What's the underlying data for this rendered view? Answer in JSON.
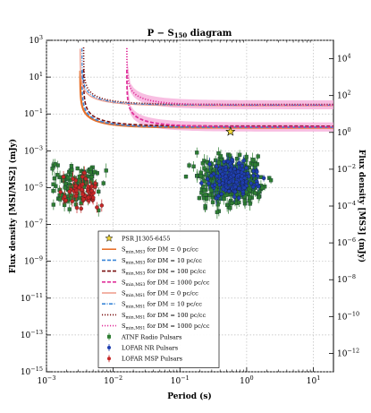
{
  "chart_data": {
    "type": "scatter",
    "title_main": "P − S",
    "title_sub": "150",
    "title_tail": " diagram",
    "xlabel": "Period (s)",
    "ylabel_left": "Flux density [MSI/MS2] (mJy)",
    "ylabel_right": "Flux density [MS3] (mJy)",
    "x_scale": "log",
    "y_scale": "log",
    "xlim": [
      0.001,
      20
    ],
    "ylim_left": [
      1e-15,
      1000
    ],
    "ylim_right": [
      1e-13,
      100000
    ],
    "x_ticks": [
      {
        "v": 0.001,
        "base": "10",
        "exp": "−3"
      },
      {
        "v": 0.01,
        "base": "10",
        "exp": "−2"
      },
      {
        "v": 0.1,
        "base": "10",
        "exp": "−1"
      },
      {
        "v": 1,
        "base": "10",
        "exp": "0"
      },
      {
        "v": 10,
        "base": "10",
        "exp": "1"
      }
    ],
    "y_ticks_left": [
      {
        "v": 1000,
        "exp": "3"
      },
      {
        "v": 10,
        "exp": "1"
      },
      {
        "v": 0.1,
        "exp": "−1"
      },
      {
        "v": 0.001,
        "exp": "−3"
      },
      {
        "v": 1e-05,
        "exp": "−5"
      },
      {
        "v": 1e-07,
        "exp": "−7"
      },
      {
        "v": 1e-09,
        "exp": "−9"
      },
      {
        "v": 1e-11,
        "exp": "−11"
      },
      {
        "v": 1e-13,
        "exp": "−13"
      },
      {
        "v": 1e-15,
        "exp": "−15"
      }
    ],
    "y_ticks_right": [
      {
        "v": 10000,
        "exp": "4"
      },
      {
        "v": 100,
        "exp": "2"
      },
      {
        "v": 1,
        "exp": "0"
      },
      {
        "v": 0.01,
        "exp": "−2"
      },
      {
        "v": 0.0001,
        "exp": "−4"
      },
      {
        "v": 1e-06,
        "exp": "−6"
      },
      {
        "v": 1e-08,
        "exp": "−8"
      },
      {
        "v": 1e-10,
        "exp": "−10"
      },
      {
        "v": 1e-12,
        "exp": "−12"
      }
    ],
    "grid": true,
    "legend_placement": "lower-center",
    "curves": [
      {
        "name": "S_min,MS3 for DM = 0 pc/cc",
        "color": "#e8702a",
        "dash": "solid",
        "width": 2.2,
        "x0": 0.0032,
        "plateau": 0.018
      },
      {
        "name": "S_min,MS3 for DM = 10 pc/cc",
        "color": "#3a86d8",
        "dash": "dashed",
        "width": 1.6,
        "x0": 0.0034,
        "plateau": 0.019
      },
      {
        "name": "S_min,MS3 for DM = 100 pc/cc",
        "color": "#7a1010",
        "dash": "dashed",
        "width": 1.6,
        "x0": 0.0036,
        "plateau": 0.022
      },
      {
        "name": "S_min,MS3 for DM = 1000 pc/cc",
        "color": "#e0309a",
        "dash": "dashed",
        "width": 1.8,
        "x0": 0.016,
        "plateau": 0.02
      },
      {
        "name": "S_min,MS1 for DM = 0 pc/cc",
        "color": "#f0a090",
        "dash": "solid",
        "width": 1.4,
        "x0": 0.0032,
        "plateau": 0.28
      },
      {
        "name": "S_min,MS1 for DM = 10 pc/cc",
        "color": "#3a86d8",
        "dash": "dashdot",
        "width": 1.2,
        "x0": 0.0034,
        "plateau": 0.3
      },
      {
        "name": "S_min,MS1 for DM = 100 pc/cc",
        "color": "#7a1010",
        "dash": "dotted",
        "width": 1.6,
        "x0": 0.0036,
        "plateau": 0.33
      },
      {
        "name": "S_min,MS1 for DM = 1000 pc/cc",
        "color": "#e0309a",
        "dash": "dotted",
        "width": 1.8,
        "x0": 0.016,
        "plateau": 0.3
      }
    ],
    "bands": [
      {
        "x0": 0.016,
        "low": 0.011,
        "high": 0.035,
        "color": "#f5a8d8"
      },
      {
        "x0": 0.016,
        "low": 0.18,
        "high": 0.55,
        "color": "#f5a8d8"
      }
    ],
    "highlight": {
      "name": "PSR J1305-6455",
      "x": 0.572,
      "y": 0.011,
      "color": "#f3d93a"
    },
    "series": [
      {
        "name": "ATNF Radio Pulsars",
        "color": "#2e7d32",
        "marker": "square",
        "count": 620,
        "seed": 11
      },
      {
        "name": "LOFAR NR Pulsars",
        "color": "#1f3fb0",
        "marker": "circle",
        "count": 170,
        "seed": 23
      },
      {
        "name": "LOFAR MSP Pulsars",
        "color": "#c62828",
        "marker": "circle",
        "count": 55,
        "seed": 37
      }
    ],
    "legend": [
      {
        "label": "PSR J1305-6455",
        "style": "star",
        "color": "#f3d93a"
      },
      {
        "label": "S",
        "sub": "min,MS3",
        "tail": " for DM = 0 pc/cc",
        "style": "solid",
        "color": "#e8702a"
      },
      {
        "label": "S",
        "sub": "min,MS3",
        "tail": " for DM = 10 pc/cc",
        "style": "dashed",
        "color": "#3a86d8"
      },
      {
        "label": "S",
        "sub": "min,MS3",
        "tail": " for DM = 100 pc/cc",
        "style": "dashed",
        "color": "#7a1010"
      },
      {
        "label": "S",
        "sub": "min,MS3",
        "tail": " for DM = 1000 pc/cc",
        "style": "dashed",
        "color": "#e0309a"
      },
      {
        "label": "S",
        "sub": "min,MS1",
        "tail": " for DM = 0 pc/cc",
        "style": "solid",
        "color": "#f0a090"
      },
      {
        "label": "S",
        "sub": "min,MS1",
        "tail": " for DM = 10 pc/cc",
        "style": "dashdot",
        "color": "#3a86d8"
      },
      {
        "label": "S",
        "sub": "min,MS1",
        "tail": " for DM = 100 pc/cc",
        "style": "dotted",
        "color": "#7a1010"
      },
      {
        "label": "S",
        "sub": "min,MS1",
        "tail": " for DM = 1000 pc/cc",
        "style": "dotted",
        "color": "#e0309a"
      },
      {
        "label": "ATNF Radio Pulsars",
        "style": "errsquare",
        "color": "#2e7d32"
      },
      {
        "label": "LOFAR NR Pulsars",
        "style": "errcircle",
        "color": "#1f3fb0"
      },
      {
        "label": "LOFAR MSP Pulsars",
        "style": "errcircle",
        "color": "#c62828"
      }
    ]
  }
}
